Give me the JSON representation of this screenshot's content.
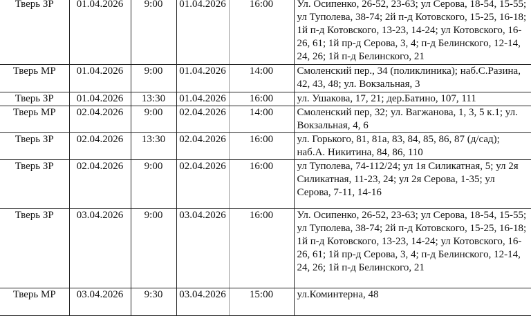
{
  "rows": [
    {
      "region": "Тверь ЗР",
      "date_from": "01.04.2026",
      "time_from": "9:00",
      "date_to": "01.04.2026",
      "time_to": "16:00",
      "addresses": "Ул. Осипенко, 26-52, 23-63; ул Серова, 18-54, 15-55; ул Туполева, 38-74; 2й п-д Котовского, 15-25, 16-18; 1й п-д Котовского, 13-23, 14-24; ул Котовского, 16-26, 61; 1й пр-д Серова, 3, 4; п-д Белинского, 12-14, 24, 26; 1й п-д Белинского, 21"
    },
    {
      "region": "Тверь МР",
      "date_from": "01.04.2026",
      "time_from": "9:00",
      "date_to": "01.04.2026",
      "time_to": "14:00",
      "addresses": "Смоленский пер., 34 (поликлиника); наб.С.Разина, 42, 43, 48; ул. Вокзальная, 3"
    },
    {
      "region": "Тверь ЗР",
      "date_from": "01.04.2026",
      "time_from": "13:30",
      "date_to": "01.04.2026",
      "time_to": "16:00",
      "addresses": "ул. Ушакова, 17, 21; дер.Батино, 107, 111"
    },
    {
      "region": "Тверь МР",
      "date_from": "02.04.2026",
      "time_from": "9:00",
      "date_to": "02.04.2026",
      "time_to": "14:00",
      "addresses": "Смоленский пер, 32;  ул. Вагжанова, 1, 3, 5 к.1; ул. Вокзальная, 4, 6"
    },
    {
      "region": "Тверь ЗР",
      "date_from": "02.04.2026",
      "time_from": "13:30",
      "date_to": "02.04.2026",
      "time_to": "16:00",
      "addresses": "ул. Горького, 81, 81а, 83, 84, 85, 86, 87 (д/сад); наб.А. Никитина, 84, 86, 110"
    },
    {
      "region": "Тверь ЗР",
      "date_from": "02.04.2026",
      "time_from": "9:00",
      "date_to": "02.04.2026",
      "time_to": "16:00",
      "addresses": "ул Туполева, 74-112/24; ул 1я Силикатная, 5; ул 2я Силикатная, 11-23, 24; ул 2я Серова, 1-35; ул Серова, 7-11, 14-16"
    },
    {
      "region": "Тверь ЗР",
      "date_from": "03.04.2026",
      "time_from": "9:00",
      "date_to": "03.04.2026",
      "time_to": "16:00",
      "addresses": "Ул. Осипенко, 26-52, 23-63; ул Серова, 18-54, 15-55; ул Туполева, 38-74; 2й п-д Котовского, 15-25, 16-18; 1й п-д Котовского, 13-23, 14-24; ул Котовского, 16-26, 61; 1й пр-д Серова, 3, 4; п-д Белинского, 12-14, 24, 26; 1й п-д Белинского, 21"
    },
    {
      "region": "Тверь МР",
      "date_from": "03.04.2026",
      "time_from": "9:30",
      "date_to": "03.04.2026",
      "time_to": "15:00",
      "addresses": "ул.Коминтерна, 48"
    }
  ]
}
